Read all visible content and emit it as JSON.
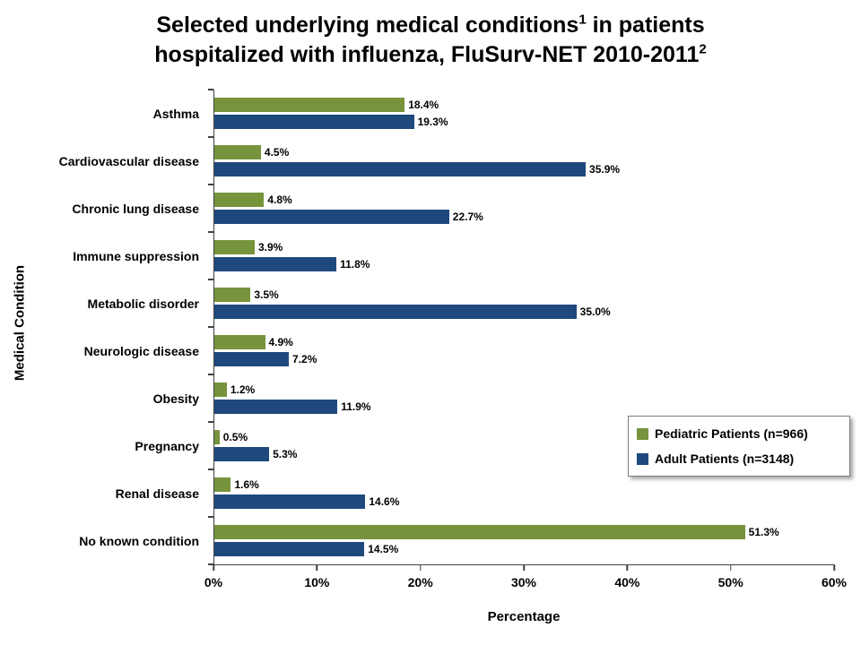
{
  "title": {
    "line1_pre": "Selected underlying medical conditions",
    "line1_sup": "1",
    "line1_post": " in patients",
    "line2_pre": "hospitalized with influenza, FluSurv-NET 2010-2011",
    "line2_sup": "2"
  },
  "chart_data": {
    "type": "bar",
    "orientation": "horizontal",
    "title": "Selected underlying medical conditions in patients hospitalized with influenza, FluSurv-NET 2010-2011",
    "xlabel": "Percentage",
    "ylabel": "Medical Condition",
    "xlim": [
      0,
      60
    ],
    "xticks": [
      "0%",
      "10%",
      "20%",
      "30%",
      "40%",
      "50%",
      "60%"
    ],
    "grid": false,
    "legend_position": "right-middle",
    "categories": [
      "Asthma",
      "Cardiovascular disease",
      "Chronic lung disease",
      "Immune suppression",
      "Metabolic disorder",
      "Neurologic disease",
      "Obesity",
      "Pregnancy",
      "Renal disease",
      "No known condition"
    ],
    "series": [
      {
        "name": "Pediatric Patients (n=966)",
        "color": "#77933C",
        "values": [
          18.4,
          4.5,
          4.8,
          3.9,
          3.5,
          4.9,
          1.2,
          0.5,
          1.6,
          51.3
        ]
      },
      {
        "name": "Adult Patients (n=3148)",
        "color": "#1F497D",
        "values": [
          19.3,
          35.9,
          22.7,
          11.8,
          35.0,
          7.2,
          11.9,
          5.3,
          14.6,
          14.5
        ]
      }
    ],
    "value_label_format": "one-decimal-percent"
  }
}
